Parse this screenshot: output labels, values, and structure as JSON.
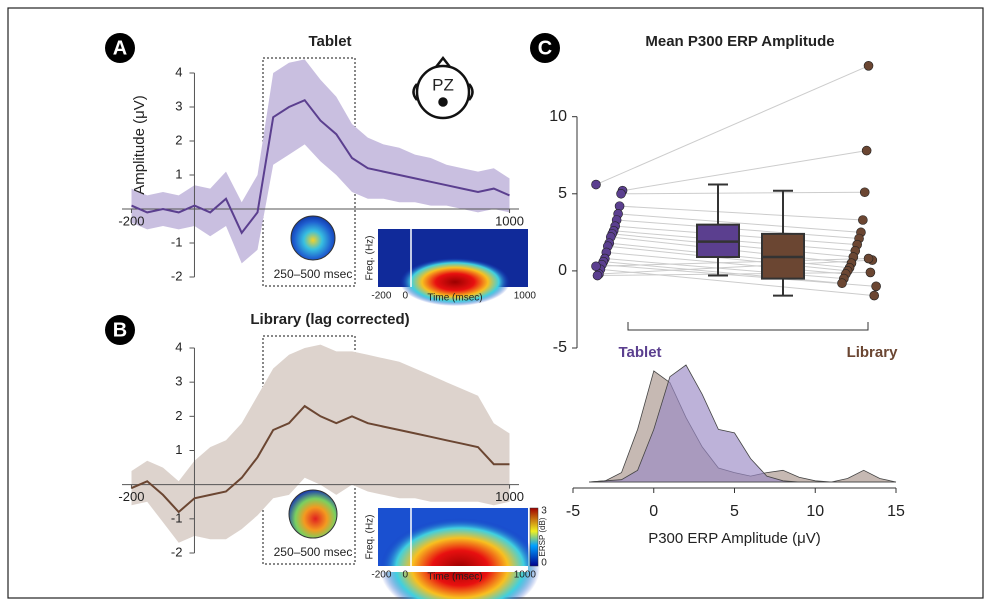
{
  "chart_data": [
    {
      "type": "line",
      "panel": "A",
      "title": "Tablet",
      "y_label": "Amplitude (μV)",
      "electrode": "PZ",
      "xlim": [
        -230,
        1030
      ],
      "xticks": [
        -200,
        1000
      ],
      "ylim": [
        -2,
        4
      ],
      "yticks": [
        -2,
        -1,
        1,
        2,
        3,
        4
      ],
      "color": "#5b3f8f",
      "band_color": "#c9bfe0",
      "x": [
        -200,
        -150,
        -100,
        -50,
        0,
        50,
        100,
        150,
        200,
        250,
        300,
        350,
        400,
        450,
        500,
        550,
        600,
        650,
        700,
        750,
        800,
        850,
        900,
        950,
        1000
      ],
      "values": [
        0.1,
        -0.1,
        0.0,
        -0.1,
        0.1,
        -0.1,
        0.3,
        -0.7,
        -0.1,
        2.7,
        3.0,
        3.2,
        2.6,
        2.2,
        1.5,
        1.2,
        1.1,
        1.0,
        0.9,
        0.8,
        0.7,
        0.6,
        0.5,
        0.6,
        0.4
      ],
      "lower": [
        -0.4,
        -0.6,
        -0.5,
        -0.6,
        -0.5,
        -0.8,
        -0.5,
        -1.6,
        -1.2,
        1.3,
        1.6,
        1.9,
        1.4,
        1.0,
        0.5,
        0.3,
        0.3,
        0.2,
        0.2,
        0.1,
        0.1,
        0.0,
        -0.1,
        0.0,
        -0.1
      ],
      "upper": [
        0.6,
        0.4,
        0.5,
        0.4,
        0.7,
        0.6,
        1.1,
        0.2,
        1.0,
        4.0,
        4.3,
        4.4,
        3.8,
        3.3,
        2.5,
        2.1,
        1.9,
        1.8,
        1.6,
        1.5,
        1.3,
        1.2,
        1.1,
        1.2,
        0.9
      ],
      "window_label": "250–500 msec",
      "inset": {
        "y_label": "Freq. (Hz)",
        "x_label": "Time (msec)",
        "xlim": [
          -270,
          1110
        ],
        "xticks": [
          -200,
          0,
          1000
        ]
      }
    },
    {
      "type": "line",
      "panel": "B",
      "title": "Library (lag corrected)",
      "xlim": [
        -230,
        1030
      ],
      "xticks": [
        -200,
        1000
      ],
      "ylim": [
        -2,
        4
      ],
      "yticks": [
        -2,
        -1,
        1,
        2,
        3,
        4
      ],
      "color": "#6b4632",
      "band_color": "#ddd3cd",
      "x": [
        -200,
        -150,
        -100,
        -50,
        0,
        50,
        100,
        150,
        200,
        250,
        300,
        350,
        400,
        450,
        500,
        550,
        600,
        650,
        700,
        750,
        800,
        850,
        900,
        950,
        1000
      ],
      "values": [
        -0.1,
        0.1,
        -0.3,
        -0.8,
        -0.4,
        -0.3,
        -0.2,
        0.2,
        0.8,
        1.6,
        1.8,
        2.3,
        2.0,
        1.8,
        2.0,
        1.8,
        1.7,
        1.6,
        1.5,
        1.4,
        1.3,
        1.2,
        1.1,
        0.6,
        0.6
      ],
      "lower": [
        -0.6,
        -0.5,
        -1.1,
        -1.7,
        -1.5,
        -1.6,
        -1.6,
        -1.3,
        -0.9,
        -0.4,
        -0.3,
        0.2,
        0.0,
        -0.3,
        0.0,
        -0.2,
        -0.3,
        -0.4,
        -0.4,
        -0.5,
        -0.5,
        -0.5,
        -0.5,
        -0.6,
        -0.5
      ],
      "upper": [
        0.4,
        0.7,
        0.5,
        0.1,
        0.7,
        1.1,
        1.3,
        1.8,
        2.6,
        3.4,
        3.8,
        4.0,
        4.1,
        3.9,
        3.9,
        3.8,
        3.7,
        3.6,
        3.4,
        3.2,
        3.0,
        2.8,
        2.6,
        1.8,
        1.5
      ],
      "window_label": "250–500 msec",
      "inset": {
        "y_label": "Freq. (Hz)",
        "x_label": "Time (msec)",
        "xlim": [
          -270,
          1110
        ],
        "xticks": [
          -200,
          0,
          1000
        ],
        "colorbar": {
          "label": "ERSP (dB)",
          "ticks": [
            0,
            3
          ]
        }
      }
    },
    {
      "type": "box",
      "panel": "C",
      "title": "Mean P300 ERP Amplitude",
      "categories": [
        "Tablet",
        "Library"
      ],
      "colors": [
        "#5b3f8f",
        "#6b4632"
      ],
      "ylim": [
        -5,
        14
      ],
      "yticks": [
        -5,
        0,
        5,
        10
      ],
      "points": [
        [
          5.6,
          5.2,
          5.0,
          4.2,
          3.7,
          3.3,
          2.9,
          2.6,
          2.4,
          2.2,
          1.8,
          1.6,
          1.2,
          0.8,
          0.6,
          0.4,
          0.1,
          -0.2,
          -0.3,
          0.3
        ],
        [
          13.3,
          7.8,
          5.1,
          3.3,
          2.5,
          2.1,
          1.7,
          1.3,
          0.9,
          0.5,
          0.2,
          0.0,
          -0.2,
          -0.5,
          -0.8,
          -1.0,
          -1.6,
          0.7,
          -0.1,
          0.8
        ]
      ],
      "boxes": [
        {
          "min": -0.3,
          "q1": 0.9,
          "median": 1.9,
          "q3": 3.0,
          "max": 5.6
        },
        {
          "min": -1.6,
          "q1": -0.5,
          "median": 0.9,
          "q3": 2.4,
          "max": 5.2
        }
      ]
    },
    {
      "type": "area",
      "x_label": "P300 ERP Amplitude (μV)",
      "xlim": [
        -5,
        15
      ],
      "xticks": [
        -5,
        0,
        5,
        10,
        15
      ],
      "ylim": [
        0,
        1
      ],
      "x": [
        -4,
        -3,
        -2,
        -1,
        0,
        1,
        2,
        3,
        4,
        5,
        6,
        7,
        8,
        9,
        10,
        11,
        12,
        13,
        14,
        15
      ],
      "series": [
        {
          "color": "#9a88c4",
          "values": [
            0,
            0.01,
            0.02,
            0.1,
            0.45,
            0.9,
            1.0,
            0.75,
            0.45,
            0.42,
            0.2,
            0.05,
            0.01,
            0,
            0,
            0,
            0,
            0,
            0,
            0
          ]
        },
        {
          "color": "#a8948a",
          "values": [
            0,
            0.01,
            0.08,
            0.45,
            0.95,
            0.85,
            0.55,
            0.3,
            0.12,
            0.08,
            0.05,
            0.08,
            0.1,
            0.04,
            0.01,
            0,
            0.03,
            0.1,
            0.03,
            0
          ]
        }
      ]
    }
  ]
}
